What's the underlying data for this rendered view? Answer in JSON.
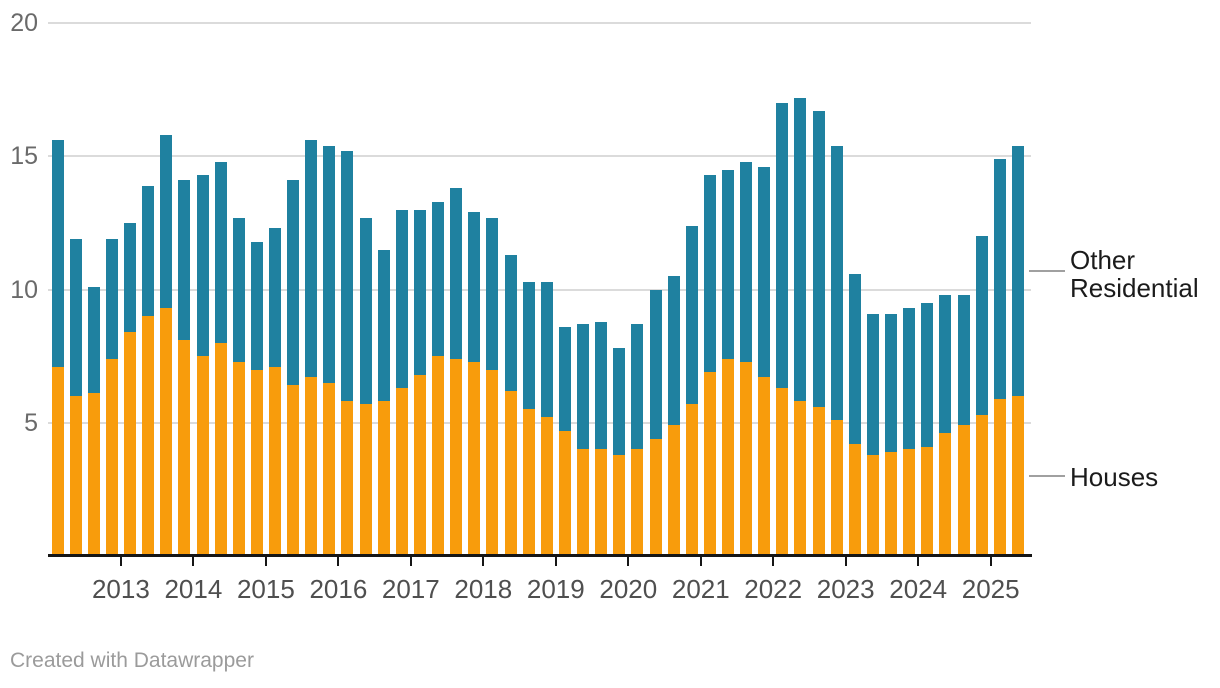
{
  "chart": {
    "y_axis": {
      "tick_values": [
        20,
        15,
        10,
        5
      ],
      "tick_labels": [
        "20",
        "15",
        "10",
        "5"
      ]
    },
    "x_axis": {
      "tick_labels": [
        "2013",
        "2014",
        "2015",
        "2016",
        "2017",
        "2018",
        "2019",
        "2020",
        "2021",
        "2022",
        "2023",
        "2024",
        "2025"
      ]
    },
    "annotations": {
      "other_residential": {
        "lines": [
          "Other",
          "Residential"
        ]
      },
      "houses": {
        "label": "Houses"
      }
    },
    "footer": {
      "credit": "Created with Datawrapper"
    }
  },
  "chart_data": {
    "type": "bar",
    "stacked": true,
    "frequency": "quarterly",
    "title": "",
    "xlabel": "",
    "ylabel": "",
    "ylim": [
      0,
      20
    ],
    "y_ticks": [
      5,
      10,
      15,
      20
    ],
    "grid": "horizontal",
    "legend_position": "right-edge-direct-labels",
    "categories": [
      "2012 Q1",
      "2012 Q2",
      "2012 Q3",
      "2012 Q4",
      "2013 Q1",
      "2013 Q2",
      "2013 Q3",
      "2013 Q4",
      "2014 Q1",
      "2014 Q2",
      "2014 Q3",
      "2014 Q4",
      "2015 Q1",
      "2015 Q2",
      "2015 Q3",
      "2015 Q4",
      "2016 Q1",
      "2016 Q2",
      "2016 Q3",
      "2016 Q4",
      "2017 Q1",
      "2017 Q2",
      "2017 Q3",
      "2017 Q4",
      "2018 Q1",
      "2018 Q2",
      "2018 Q3",
      "2018 Q4",
      "2019 Q1",
      "2019 Q2",
      "2019 Q3",
      "2019 Q4",
      "2020 Q1",
      "2020 Q2",
      "2020 Q3",
      "2020 Q4",
      "2021 Q1",
      "2021 Q2",
      "2021 Q3",
      "2021 Q4",
      "2022 Q1",
      "2022 Q2",
      "2022 Q3",
      "2022 Q4",
      "2023 Q1",
      "2023 Q2",
      "2023 Q3",
      "2023 Q4",
      "2024 Q1",
      "2024 Q2",
      "2024 Q3",
      "2024 Q4",
      "2025 Q1",
      "2025 Q2"
    ],
    "series": [
      {
        "name": "Houses",
        "color": "#F89C0C",
        "values": [
          7.1,
          6.0,
          6.1,
          7.4,
          8.4,
          9.0,
          9.3,
          8.1,
          7.5,
          8.0,
          7.3,
          7.0,
          7.1,
          6.4,
          6.7,
          6.5,
          5.8,
          5.7,
          5.8,
          6.3,
          6.8,
          7.5,
          7.4,
          7.3,
          7.0,
          6.2,
          5.5,
          5.2,
          4.7,
          4.0,
          4.0,
          3.8,
          4.0,
          4.4,
          4.9,
          5.7,
          6.9,
          7.4,
          7.3,
          6.7,
          6.3,
          5.8,
          5.6,
          5.1,
          4.2,
          3.8,
          3.9,
          4.0,
          4.1,
          4.6,
          4.9,
          5.3,
          5.9,
          6.0
        ]
      },
      {
        "name": "Other Residential",
        "color": "#1F81A0",
        "values": [
          8.5,
          5.9,
          4.0,
          4.5,
          4.1,
          4.9,
          6.5,
          6.0,
          6.8,
          6.8,
          5.4,
          4.8,
          5.2,
          7.7,
          8.9,
          8.9,
          9.4,
          7.0,
          5.7,
          6.7,
          6.2,
          5.8,
          6.4,
          5.6,
          5.7,
          5.1,
          4.8,
          5.1,
          3.9,
          4.7,
          4.8,
          4.0,
          4.7,
          5.6,
          5.6,
          6.7,
          7.4,
          7.1,
          7.5,
          7.9,
          10.7,
          11.4,
          11.1,
          10.3,
          6.4,
          5.3,
          5.2,
          5.3,
          5.4,
          5.2,
          4.9,
          6.7,
          9.0,
          9.4
        ]
      }
    ],
    "stacked_totals": [
      15.6,
      11.9,
      10.1,
      11.9,
      12.5,
      13.9,
      15.8,
      14.1,
      14.3,
      14.8,
      12.7,
      11.8,
      12.3,
      14.1,
      15.6,
      15.4,
      15.2,
      12.7,
      11.5,
      13.0,
      13.0,
      13.3,
      13.8,
      12.9,
      12.7,
      11.3,
      10.3,
      10.3,
      8.6,
      8.7,
      8.8,
      7.8,
      8.7,
      10.0,
      10.5,
      12.4,
      14.3,
      14.5,
      14.8,
      14.6,
      17.0,
      17.2,
      16.7,
      15.4,
      10.6,
      9.1,
      9.1,
      9.3,
      9.5,
      9.8,
      9.8,
      12.0,
      14.9,
      15.4
    ]
  }
}
